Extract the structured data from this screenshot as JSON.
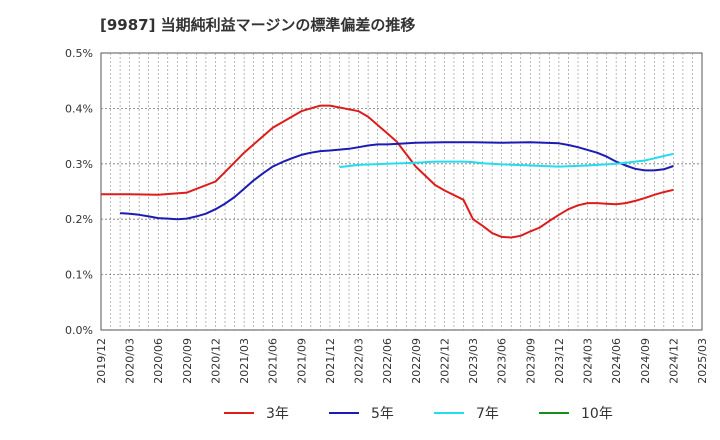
{
  "title": "[9987]  当期純利益マージンの標準偏差の推移",
  "chart_data": {
    "type": "line",
    "title": "[9987]  当期純利益マージンの標準偏差の推移",
    "xlabel": "",
    "ylabel": "",
    "ylim": [
      0,
      0.5
    ],
    "yticks": [
      "0.0%",
      "0.1%",
      "0.2%",
      "0.3%",
      "0.4%",
      "0.5%"
    ],
    "xticks": [
      "2019/12",
      "2020/03",
      "2020/06",
      "2020/09",
      "2020/12",
      "2021/03",
      "2021/06",
      "2021/09",
      "2021/12",
      "2022/03",
      "2022/06",
      "2022/09",
      "2022/12",
      "2023/03",
      "2023/06",
      "2023/09",
      "2023/12",
      "2024/03",
      "2024/06",
      "2024/09",
      "2024/12",
      "2025/03"
    ],
    "grid": true,
    "legend_position": "bottom",
    "series": [
      {
        "name": "3年",
        "color": "#dd1c1c",
        "points": [
          [
            "2019/12",
            0.245
          ],
          [
            "2020/03",
            0.245
          ],
          [
            "2020/06",
            0.244
          ],
          [
            "2020/09",
            0.248
          ],
          [
            "2020/12",
            0.268
          ],
          [
            "2021/01",
            0.285
          ],
          [
            "2021/03",
            0.32
          ],
          [
            "2021/06",
            0.365
          ],
          [
            "2021/09",
            0.395
          ],
          [
            "2021/11",
            0.405
          ],
          [
            "2021/12",
            0.405
          ],
          [
            "2022/03",
            0.395
          ],
          [
            "2022/04",
            0.385
          ],
          [
            "2022/06",
            0.355
          ],
          [
            "2022/07",
            0.34
          ],
          [
            "2022/09",
            0.295
          ],
          [
            "2022/11",
            0.262
          ],
          [
            "2022/12",
            0.252
          ],
          [
            "2023/02",
            0.235
          ],
          [
            "2023/03",
            0.2
          ],
          [
            "2023/04",
            0.188
          ],
          [
            "2023/05",
            0.175
          ],
          [
            "2023/06",
            0.168
          ],
          [
            "2023/07",
            0.167
          ],
          [
            "2023/08",
            0.17
          ],
          [
            "2023/09",
            0.178
          ],
          [
            "2023/10",
            0.185
          ],
          [
            "2023/11",
            0.197
          ],
          [
            "2023/12",
            0.208
          ],
          [
            "2024/01",
            0.218
          ],
          [
            "2024/02",
            0.225
          ],
          [
            "2024/03",
            0.229
          ],
          [
            "2024/04",
            0.229
          ],
          [
            "2024/05",
            0.228
          ],
          [
            "2024/06",
            0.227
          ],
          [
            "2024/07",
            0.229
          ],
          [
            "2024/08",
            0.233
          ],
          [
            "2024/09",
            0.238
          ],
          [
            "2024/10",
            0.244
          ],
          [
            "2024/11",
            0.249
          ],
          [
            "2024/12",
            0.253
          ]
        ]
      },
      {
        "name": "5年",
        "color": "#1c1cb4",
        "points": [
          [
            "2020/02",
            0.211
          ],
          [
            "2020/03",
            0.21
          ],
          [
            "2020/04",
            0.208
          ],
          [
            "2020/05",
            0.205
          ],
          [
            "2020/06",
            0.202
          ],
          [
            "2020/07",
            0.201
          ],
          [
            "2020/08",
            0.2
          ],
          [
            "2020/09",
            0.201
          ],
          [
            "2020/10",
            0.205
          ],
          [
            "2020/11",
            0.21
          ],
          [
            "2020/12",
            0.218
          ],
          [
            "2021/01",
            0.228
          ],
          [
            "2021/02",
            0.24
          ],
          [
            "2021/03",
            0.255
          ],
          [
            "2021/04",
            0.27
          ],
          [
            "2021/05",
            0.283
          ],
          [
            "2021/06",
            0.295
          ],
          [
            "2021/07",
            0.303
          ],
          [
            "2021/08",
            0.31
          ],
          [
            "2021/09",
            0.316
          ],
          [
            "2021/10",
            0.32
          ],
          [
            "2021/11",
            0.323
          ],
          [
            "2021/12",
            0.324
          ],
          [
            "2022/02",
            0.327
          ],
          [
            "2022/03",
            0.33
          ],
          [
            "2022/04",
            0.333
          ],
          [
            "2022/05",
            0.335
          ],
          [
            "2022/06",
            0.335
          ],
          [
            "2022/07",
            0.336
          ],
          [
            "2022/09",
            0.338
          ],
          [
            "2022/12",
            0.339
          ],
          [
            "2023/03",
            0.339
          ],
          [
            "2023/06",
            0.338
          ],
          [
            "2023/09",
            0.339
          ],
          [
            "2023/12",
            0.337
          ],
          [
            "2024/01",
            0.334
          ],
          [
            "2024/02",
            0.33
          ],
          [
            "2024/03",
            0.325
          ],
          [
            "2024/04",
            0.32
          ],
          [
            "2024/05",
            0.313
          ],
          [
            "2024/06",
            0.304
          ],
          [
            "2024/07",
            0.297
          ],
          [
            "2024/08",
            0.291
          ],
          [
            "2024/09",
            0.288
          ],
          [
            "2024/10",
            0.288
          ],
          [
            "2024/11",
            0.29
          ],
          [
            "2024/12",
            0.296
          ]
        ]
      },
      {
        "name": "7年",
        "color": "#22ddee",
        "points": [
          [
            "2022/01",
            0.294
          ],
          [
            "2022/02",
            0.296
          ],
          [
            "2022/03",
            0.298
          ],
          [
            "2022/06",
            0.3
          ],
          [
            "2022/09",
            0.302
          ],
          [
            "2022/11",
            0.304
          ],
          [
            "2022/12",
            0.304
          ],
          [
            "2023/02",
            0.304
          ],
          [
            "2023/03",
            0.303
          ],
          [
            "2023/04",
            0.301
          ],
          [
            "2023/06",
            0.299
          ],
          [
            "2023/09",
            0.297
          ],
          [
            "2023/12",
            0.295
          ],
          [
            "2024/03",
            0.297
          ],
          [
            "2024/06",
            0.3
          ],
          [
            "2024/07",
            0.302
          ],
          [
            "2024/09",
            0.306
          ],
          [
            "2024/10",
            0.31
          ],
          [
            "2024/11",
            0.314
          ],
          [
            "2024/12",
            0.318
          ]
        ]
      },
      {
        "name": "10年",
        "color": "#1a8c1a",
        "points": []
      }
    ]
  }
}
